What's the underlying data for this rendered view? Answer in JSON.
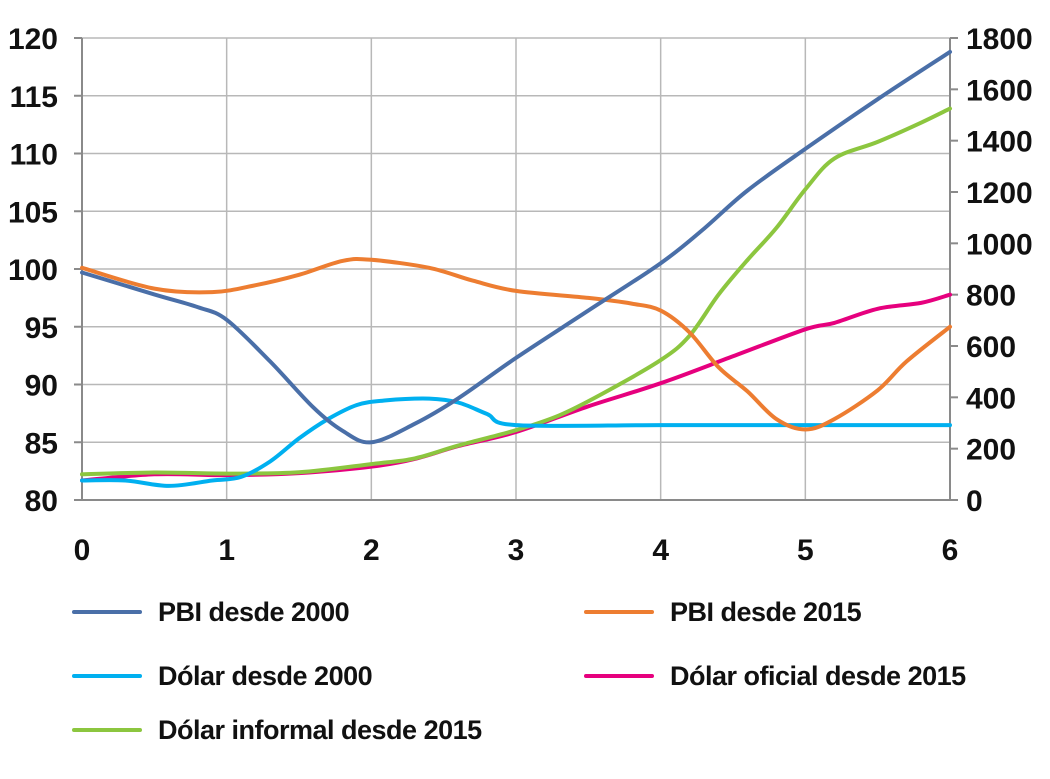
{
  "chart_data": {
    "type": "line",
    "x_ticks": [
      0,
      1,
      2,
      3,
      4,
      5,
      6
    ],
    "xlim": [
      0,
      6
    ],
    "y_left": {
      "lim": [
        80,
        120
      ],
      "ticks": [
        80,
        85,
        90,
        95,
        100,
        105,
        110,
        115,
        120
      ]
    },
    "y_right": {
      "lim": [
        0,
        1800
      ],
      "ticks": [
        0,
        200,
        400,
        600,
        800,
        1000,
        1200,
        1400,
        1600,
        1800
      ]
    },
    "grid": true,
    "series": [
      {
        "name": "PBI desde 2000",
        "axis": "left",
        "color": "#4a6fa8",
        "points": [
          [
            0,
            99.7
          ],
          [
            0.5,
            97.8
          ],
          [
            0.8,
            96.7
          ],
          [
            1,
            95.6
          ],
          [
            1.3,
            92
          ],
          [
            1.6,
            88
          ],
          [
            1.8,
            86
          ],
          [
            2,
            85
          ],
          [
            2.3,
            86.6
          ],
          [
            2.6,
            88.8
          ],
          [
            3,
            92.3
          ],
          [
            3.5,
            96.4
          ],
          [
            4,
            100.5
          ],
          [
            4.3,
            103.5
          ],
          [
            4.6,
            106.8
          ],
          [
            5,
            110.4
          ],
          [
            5.5,
            114.7
          ],
          [
            6,
            118.8
          ]
        ]
      },
      {
        "name": "PBI desde 2015",
        "axis": "left",
        "color": "#ed7d31",
        "points": [
          [
            0,
            100.1
          ],
          [
            0.5,
            98.3
          ],
          [
            0.9,
            98
          ],
          [
            1.2,
            98.6
          ],
          [
            1.5,
            99.5
          ],
          [
            1.8,
            100.7
          ],
          [
            2,
            100.8
          ],
          [
            2.4,
            100.1
          ],
          [
            2.7,
            99
          ],
          [
            3,
            98.1
          ],
          [
            3.5,
            97.5
          ],
          [
            3.8,
            97
          ],
          [
            4,
            96.4
          ],
          [
            4.2,
            94.5
          ],
          [
            4.4,
            91.5
          ],
          [
            4.6,
            89.4
          ],
          [
            4.8,
            87
          ],
          [
            5,
            86.1
          ],
          [
            5.2,
            87
          ],
          [
            5.5,
            89.5
          ],
          [
            5.7,
            92
          ],
          [
            6,
            95
          ]
        ]
      },
      {
        "name": "Dólar desde 2000",
        "axis": "right",
        "color": "#00b0f0",
        "points": [
          [
            0,
            76
          ],
          [
            0.3,
            76
          ],
          [
            0.6,
            55
          ],
          [
            0.9,
            76
          ],
          [
            1.1,
            90
          ],
          [
            1.3,
            150
          ],
          [
            1.5,
            240
          ],
          [
            1.7,
            315
          ],
          [
            1.9,
            370
          ],
          [
            2.1,
            388
          ],
          [
            2.4,
            395
          ],
          [
            2.6,
            380
          ],
          [
            2.8,
            335
          ],
          [
            3,
            292
          ],
          [
            4,
            292
          ],
          [
            5,
            292
          ],
          [
            6,
            292
          ]
        ]
      },
      {
        "name": "Dólar oficial desde 2015",
        "axis": "right",
        "color": "#e6007e",
        "points": [
          [
            0,
            76
          ],
          [
            0.5,
            100
          ],
          [
            1,
            97
          ],
          [
            1.5,
            105
          ],
          [
            2,
            130
          ],
          [
            2.3,
            160
          ],
          [
            2.6,
            210
          ],
          [
            3,
            265
          ],
          [
            3.5,
            365
          ],
          [
            4,
            455
          ],
          [
            4.5,
            560
          ],
          [
            5,
            665
          ],
          [
            5.2,
            690
          ],
          [
            5.5,
            745
          ],
          [
            5.8,
            768
          ],
          [
            6,
            800
          ]
        ]
      },
      {
        "name": "Dólar informal desde 2015",
        "axis": "right",
        "color": "#8cc63f",
        "points": [
          [
            0,
            100
          ],
          [
            0.5,
            107
          ],
          [
            1,
            103
          ],
          [
            1.5,
            108
          ],
          [
            2,
            140
          ],
          [
            2.3,
            162
          ],
          [
            2.6,
            212
          ],
          [
            3,
            272
          ],
          [
            3.3,
            330
          ],
          [
            3.6,
            415
          ],
          [
            4,
            545
          ],
          [
            4.2,
            640
          ],
          [
            4.4,
            800
          ],
          [
            4.6,
            935
          ],
          [
            4.8,
            1060
          ],
          [
            5,
            1210
          ],
          [
            5.2,
            1330
          ],
          [
            5.5,
            1395
          ],
          [
            5.8,
            1470
          ],
          [
            6,
            1525
          ]
        ]
      }
    ]
  }
}
